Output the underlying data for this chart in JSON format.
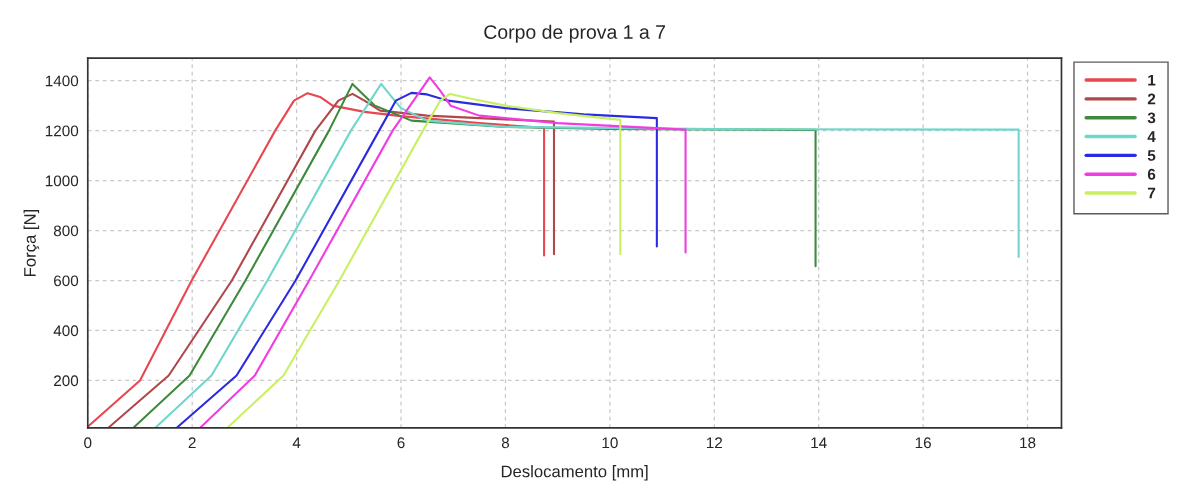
{
  "chart_data": {
    "type": "line",
    "title": "Corpo de prova 1 a 7",
    "xlabel": "Deslocamento [mm]",
    "ylabel": "Força [N]",
    "xlim": [
      0,
      18.65
    ],
    "ylim": [
      10,
      1490
    ],
    "xticks": [
      0,
      2,
      4,
      6,
      8,
      10,
      12,
      14,
      16,
      18
    ],
    "yticks": [
      200,
      400,
      600,
      800,
      1000,
      1200,
      1400
    ],
    "grid": true,
    "legend": "top right",
    "marker": "none",
    "line_style": "solid",
    "series": [
      {
        "name": "1",
        "color": "#e8474f",
        "x": [
          0,
          1.0,
          1.99,
          3.59,
          3.95,
          4.21,
          4.45,
          4.69,
          5.3,
          6.0,
          7.5,
          8.74,
          8.74
        ],
        "values": [
          15,
          200,
          600,
          1200,
          1320,
          1350,
          1335,
          1300,
          1275,
          1258,
          1230,
          1211,
          700
        ]
      },
      {
        "name": "2",
        "color": "#b0474a",
        "x": [
          0.39,
          1.55,
          2.76,
          4.36,
          4.8,
          5.07,
          5.3,
          5.6,
          6.5,
          8.0,
          8.93,
          8.93
        ],
        "values": [
          10,
          220,
          600,
          1200,
          1320,
          1347,
          1320,
          1280,
          1260,
          1245,
          1236,
          705
        ]
      },
      {
        "name": "3",
        "color": "#3d8a3d",
        "x": [
          0.87,
          1.95,
          3.02,
          4.62,
          5.07,
          5.25,
          5.5,
          6.2,
          8.0,
          10.0,
          13.94,
          13.94
        ],
        "values": [
          10,
          220,
          600,
          1200,
          1387,
          1350,
          1300,
          1240,
          1215,
          1207,
          1203,
          657
        ]
      },
      {
        "name": "4",
        "color": "#6fd6cc",
        "x": [
          1.29,
          2.37,
          3.44,
          5.04,
          5.62,
          5.8,
          6.0,
          6.5,
          8.0,
          12.0,
          17.83,
          17.83
        ],
        "values": [
          10,
          220,
          600,
          1200,
          1387,
          1340,
          1290,
          1240,
          1215,
          1206,
          1204,
          694
        ]
      },
      {
        "name": "5",
        "color": "#2a2ae0",
        "x": [
          1.7,
          2.85,
          3.98,
          5.58,
          5.9,
          6.2,
          6.5,
          6.9,
          8.0,
          9.5,
          10.9,
          10.9
        ],
        "values": [
          10,
          220,
          600,
          1200,
          1320,
          1351,
          1345,
          1320,
          1290,
          1265,
          1250,
          736
        ]
      },
      {
        "name": "6",
        "color": "#f03ce0",
        "x": [
          2.15,
          3.2,
          4.24,
          5.84,
          6.55,
          6.75,
          6.95,
          7.5,
          9.0,
          11.45,
          11.45
        ],
        "values": [
          10,
          220,
          600,
          1200,
          1413,
          1360,
          1300,
          1260,
          1230,
          1204,
          712
        ]
      },
      {
        "name": "7",
        "color": "#c8f060",
        "x": [
          2.67,
          3.75,
          4.82,
          6.42,
          6.75,
          6.94,
          7.3,
          8.0,
          9.0,
          10.2,
          10.2
        ],
        "values": [
          10,
          220,
          600,
          1200,
          1320,
          1347,
          1330,
          1300,
          1270,
          1243,
          705
        ]
      }
    ]
  }
}
